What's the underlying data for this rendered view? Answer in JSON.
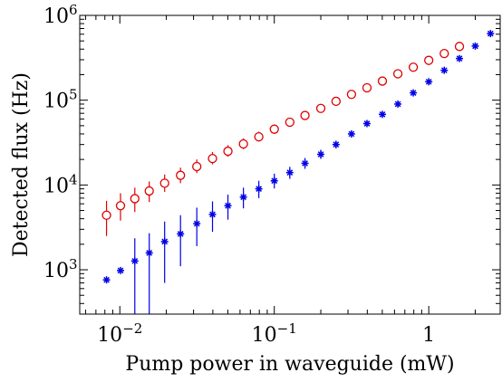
{
  "chart_data": {
    "type": "scatter",
    "xlabel": "Pump power in waveguide (mW)",
    "ylabel": "Detected flux (Hz)",
    "xscale": "log",
    "yscale": "log",
    "xlim": [
      0.0055,
      2.9
    ],
    "ylim": [
      300,
      1000000
    ],
    "grid": false,
    "legend": "none",
    "x_ticks": [
      {
        "value": 0.01,
        "base": "10",
        "exp": "−2"
      },
      {
        "value": 0.1,
        "base": "10",
        "exp": "−1"
      },
      {
        "value": 1,
        "base": "1",
        "exp": ""
      }
    ],
    "y_ticks": [
      {
        "value": 1000,
        "base": "10",
        "exp": "3"
      },
      {
        "value": 10000,
        "base": "10",
        "exp": "4"
      },
      {
        "value": 100000,
        "base": "10",
        "exp": "5"
      },
      {
        "value": 1000000,
        "base": "10",
        "exp": "6"
      }
    ],
    "series": [
      {
        "marker": "circle",
        "color": "#e00000",
        "points": [
          {
            "x": 0.0082,
            "y": 4400,
            "lo": 2500,
            "hi": 6500
          },
          {
            "x": 0.0101,
            "y": 5700,
            "lo": 3800,
            "hi": 8000
          },
          {
            "x": 0.0125,
            "y": 6900,
            "lo": 4800,
            "hi": 9300
          },
          {
            "x": 0.0155,
            "y": 8500,
            "lo": 6300,
            "hi": 11000
          },
          {
            "x": 0.0195,
            "y": 10500,
            "lo": 8300,
            "hi": 13300
          },
          {
            "x": 0.0247,
            "y": 13000,
            "lo": 10500,
            "hi": 16000
          },
          {
            "x": 0.0315,
            "y": 16500,
            "lo": 13800,
            "hi": 20000
          },
          {
            "x": 0.0398,
            "y": 20500,
            "lo": 17500,
            "hi": 24500
          },
          {
            "x": 0.0501,
            "y": 25000,
            "lo": 21500,
            "hi": 29500
          },
          {
            "x": 0.0631,
            "y": 30500,
            "lo": 26500,
            "hi": 35500
          },
          {
            "x": 0.0794,
            "y": 37000,
            "lo": 32500,
            "hi": 42500
          },
          {
            "x": 0.1,
            "y": 45500,
            "lo": 40000,
            "hi": 51500
          },
          {
            "x": 0.126,
            "y": 55000,
            "lo": 49000,
            "hi": 62000
          },
          {
            "x": 0.158,
            "y": 66000,
            "lo": 59000,
            "hi": 73500
          },
          {
            "x": 0.2,
            "y": 80000,
            "lo": 72000,
            "hi": 88500
          },
          {
            "x": 0.251,
            "y": 97000,
            "lo": 88000,
            "hi": 107000
          },
          {
            "x": 0.316,
            "y": 117000,
            "lo": 107000,
            "hi": 128000
          },
          {
            "x": 0.398,
            "y": 140000,
            "lo": 129000,
            "hi": 152000
          },
          {
            "x": 0.501,
            "y": 168000,
            "lo": 155000,
            "hi": 182000
          },
          {
            "x": 0.631,
            "y": 205000,
            "lo": 190000,
            "hi": 221000
          },
          {
            "x": 0.794,
            "y": 245000,
            "lo": 228000,
            "hi": 264000
          },
          {
            "x": 1.0,
            "y": 295000,
            "lo": 276000,
            "hi": 316000
          },
          {
            "x": 1.26,
            "y": 355000,
            "lo": 333000,
            "hi": 378000
          },
          {
            "x": 1.58,
            "y": 430000,
            "lo": 405000,
            "hi": 456000
          }
        ]
      },
      {
        "marker": "asterisk",
        "color": "#0000e6",
        "points": [
          {
            "x": 0.0082,
            "y": 760,
            "lo": null,
            "hi": null
          },
          {
            "x": 0.0101,
            "y": 980,
            "lo": null,
            "hi": null
          },
          {
            "x": 0.0125,
            "y": 1270,
            "lo": 300,
            "hi": 2350
          },
          {
            "x": 0.0155,
            "y": 1580,
            "lo": 300,
            "hi": 2700
          },
          {
            "x": 0.0195,
            "y": 2150,
            "lo": 700,
            "hi": 3700
          },
          {
            "x": 0.0247,
            "y": 2650,
            "lo": 1100,
            "hi": 4400
          },
          {
            "x": 0.0315,
            "y": 3500,
            "lo": 1900,
            "hi": 5400
          },
          {
            "x": 0.0398,
            "y": 4500,
            "lo": 2800,
            "hi": 6400
          },
          {
            "x": 0.0501,
            "y": 5700,
            "lo": 3900,
            "hi": 7700
          },
          {
            "x": 0.0631,
            "y": 7200,
            "lo": 5300,
            "hi": 9300
          },
          {
            "x": 0.0794,
            "y": 9000,
            "lo": 7000,
            "hi": 11200
          },
          {
            "x": 0.1,
            "y": 11200,
            "lo": 9100,
            "hi": 13600
          },
          {
            "x": 0.126,
            "y": 14000,
            "lo": 11800,
            "hi": 16400
          },
          {
            "x": 0.158,
            "y": 18000,
            "lo": 15500,
            "hi": 20800
          },
          {
            "x": 0.2,
            "y": 23000,
            "lo": 20300,
            "hi": 26000
          },
          {
            "x": 0.251,
            "y": 30000,
            "lo": 27000,
            "hi": 33300
          },
          {
            "x": 0.316,
            "y": 40000,
            "lo": 36500,
            "hi": 43700
          },
          {
            "x": 0.398,
            "y": 53000,
            "lo": 49000,
            "hi": 57300
          },
          {
            "x": 0.501,
            "y": 68000,
            "lo": 63500,
            "hi": 72800
          },
          {
            "x": 0.631,
            "y": 90000,
            "lo": 84500,
            "hi": 96000
          },
          {
            "x": 0.794,
            "y": 122000,
            "lo": 115500,
            "hi": 129000
          },
          {
            "x": 1.0,
            "y": 165000,
            "lo": 157000,
            "hi": 174000
          },
          {
            "x": 1.26,
            "y": 225000,
            "lo": 215000,
            "hi": 236000
          },
          {
            "x": 1.58,
            "y": 310000,
            "lo": 297000,
            "hi": 324000
          },
          {
            "x": 2.0,
            "y": 435000,
            "lo": 419000,
            "hi": 452000
          },
          {
            "x": 2.51,
            "y": 610000,
            "lo": 590000,
            "hi": 631000
          }
        ]
      }
    ]
  }
}
